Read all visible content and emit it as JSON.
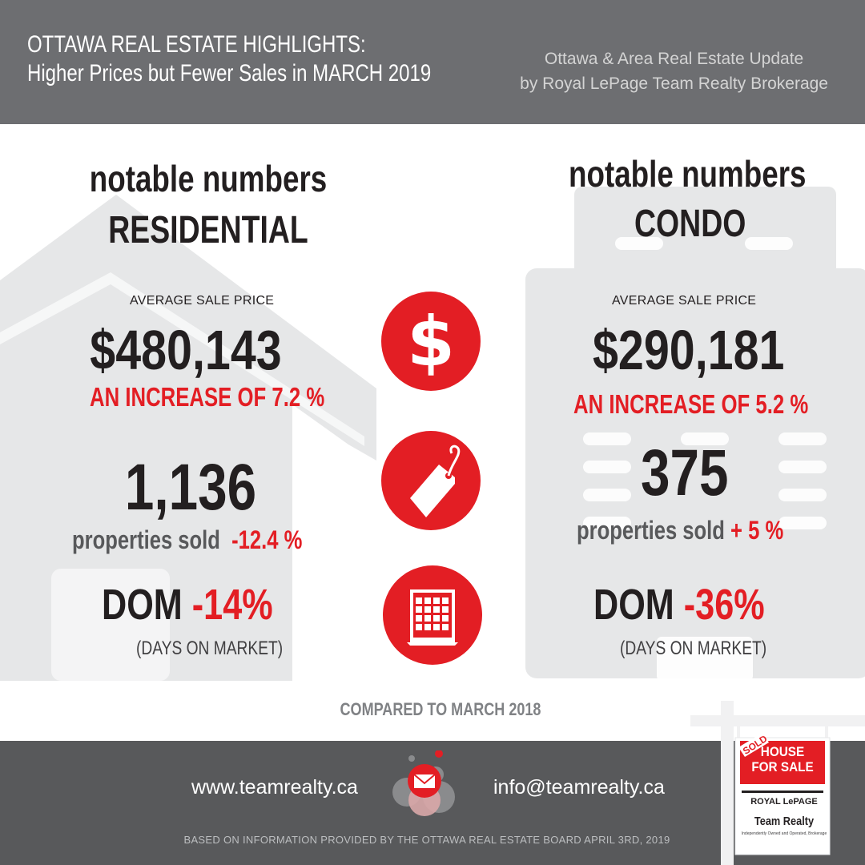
{
  "header": {
    "title_line1": "OTTAWA REAL ESTATE HIGHLIGHTS:",
    "title_line2": "Higher Prices but Fewer Sales in MARCH 2019",
    "subtitle_line1": "Ottawa & Area Real Estate Update",
    "subtitle_line2": "by Royal LePage Team Realty Brokerage"
  },
  "residential": {
    "heading": "notable numbers",
    "category": "RESIDENTIAL",
    "price_label": "AVERAGE SALE PRICE",
    "price": "$480,143",
    "price_change": "AN INCREASE OF 7.2 %",
    "sold_count": "1,136",
    "sold_label": "properties sold",
    "sold_change": "-12.4 %",
    "dom_label": "DOM",
    "dom_change": "-14%",
    "dom_caption": "(DAYS ON MARKET)"
  },
  "condo": {
    "heading": "notable numbers",
    "category": "CONDO",
    "price_label": "AVERAGE SALE PRICE",
    "price": "$290,181",
    "price_change": "AN INCREASE OF 5.2 %",
    "sold_count": "375",
    "sold_label": "properties sold",
    "sold_change": "+ 5 %",
    "dom_label": "DOM",
    "dom_change": "-36%",
    "dom_caption": "(DAYS ON MARKET)"
  },
  "icons": {
    "price": "dollar-icon",
    "sold": "price-tag-icon",
    "dom": "calendar-icon",
    "email": "envelope-icon"
  },
  "comparison": "COMPARED TO MARCH 2018",
  "footer": {
    "website": "www.teamrealty.ca",
    "email": "info@teamrealty.ca",
    "source_note": "BASED ON INFORMATION PROVIDED BY THE OTTAWA REAL ESTATE BOARD APRIL 3RD, 2019"
  },
  "sign": {
    "sold": "SOLD",
    "line1": "HOUSE",
    "line2": "FOR SALE",
    "brand1": "ROYAL LePAGE",
    "brand2": "Team Realty",
    "tagline": "Independently Owned and Operated, Brokerage"
  },
  "colors": {
    "accent_red": "#e31e24",
    "header_gray": "#6d6e71",
    "footer_gray": "#58595b",
    "illustration_gray": "#e6e7e8"
  }
}
